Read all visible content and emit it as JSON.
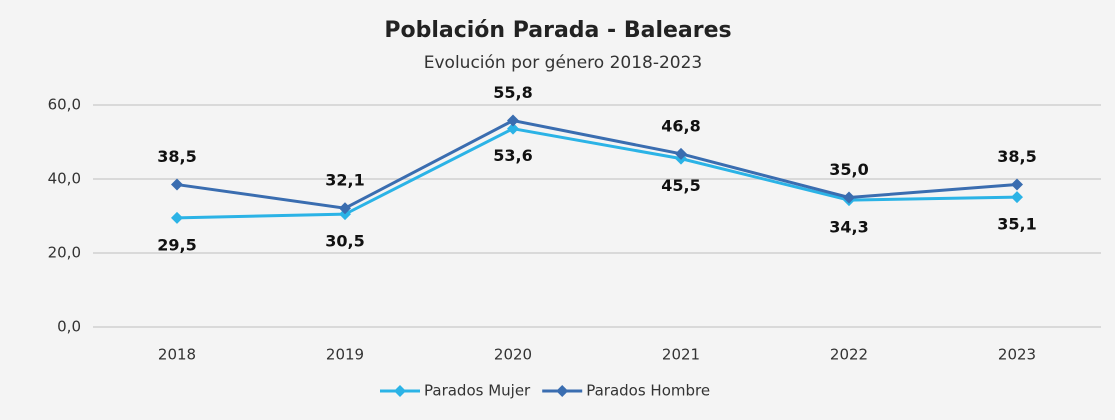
{
  "chart_data": {
    "type": "line",
    "title": "Población Parada - Baleares",
    "subtitle": "Evolución por género 2018-2023",
    "categories": [
      "2018",
      "2019",
      "2020",
      "2021",
      "2022",
      "2023"
    ],
    "series": [
      {
        "name": "Parados Mujer",
        "color": "#2bb3e6",
        "values": [
          29.5,
          30.5,
          53.6,
          45.5,
          34.3,
          35.1
        ],
        "value_labels": [
          "29,5",
          "30,5",
          "53,6",
          "45,5",
          "34,3",
          "35,1"
        ],
        "label_position": "below"
      },
      {
        "name": "Parados Hombre",
        "color": "#3a6db0",
        "values": [
          38.5,
          32.1,
          55.8,
          46.8,
          35.0,
          38.5
        ],
        "value_labels": [
          "38,5",
          "32,1",
          "55,8",
          "46,8",
          "35,0",
          "38,5"
        ],
        "label_position": "above"
      }
    ],
    "ylim": [
      0,
      60
    ],
    "yticks": [
      {
        "value": 0,
        "label": "0,0"
      },
      {
        "value": 20,
        "label": "20,0"
      },
      {
        "value": 40,
        "label": "40,0"
      },
      {
        "value": 60,
        "label": "60,0"
      }
    ],
    "grid": true,
    "legend": "bottom"
  }
}
